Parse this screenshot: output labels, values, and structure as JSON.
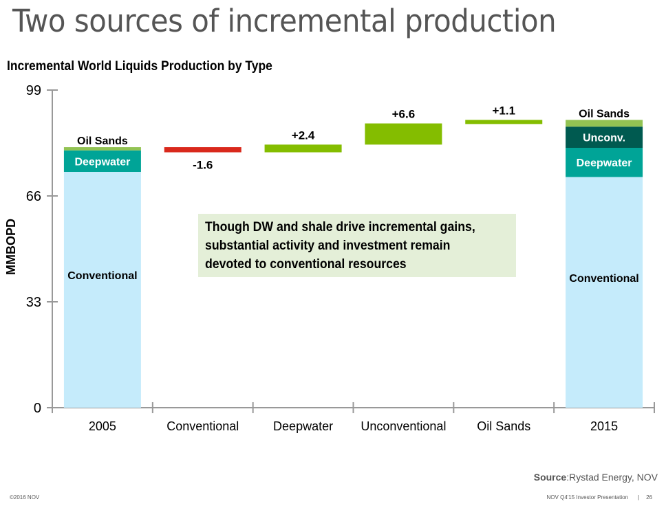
{
  "slide": {
    "title": "Two sources of incremental production",
    "callout_lines": [
      "Though DW and shale drive incremental gains,",
      "substantial activity and investment remain",
      "devoted to conventional resources"
    ],
    "source_label": "Source",
    "source_text": ":Rystad Energy, NOV",
    "footer_left": "©2016 NOV",
    "footer_presentation": "NOV Q4'15 Investor Presentation",
    "footer_separator": "|",
    "page_number": "26"
  },
  "colors": {
    "conventional": "#c5ebfb",
    "deepwater": "#00a497",
    "unconventional": "#005a50",
    "oil_sands": "#92c353",
    "increase": "#84bd00",
    "decrease": "#d9291c",
    "axis": "#999999"
  },
  "chart_data": {
    "type": "bar",
    "subtype": "waterfall",
    "title": "Incremental World Liquids Production by Type",
    "xlabel": "",
    "ylabel": "MMBOPD",
    "ylim": [
      0,
      99
    ],
    "yticks": [
      0,
      33,
      66,
      99
    ],
    "grid": false,
    "categories": [
      "2005",
      "Conventional",
      "Deepwater",
      "Unconventional",
      "Oil Sands",
      "2015"
    ],
    "stacked_totals": [
      {
        "category": "2005",
        "segments": [
          {
            "name": "Conventional",
            "value": 73.5,
            "color_key": "conventional",
            "label_color": "#000000"
          },
          {
            "name": "Deepwater",
            "value": 6.7,
            "color_key": "deepwater",
            "label_color": "#ffffff"
          },
          {
            "name": "Oil Sands",
            "value": 1.0,
            "color_key": "oil_sands",
            "label_color": "#000000",
            "label_above": true
          }
        ]
      },
      {
        "category": "2015",
        "segments": [
          {
            "name": "Conventional",
            "value": 71.9,
            "color_key": "conventional",
            "label_color": "#000000"
          },
          {
            "name": "Deepwater",
            "value": 9.1,
            "color_key": "deepwater",
            "label_color": "#ffffff"
          },
          {
            "name": "Unconv.",
            "value": 6.6,
            "color_key": "unconventional",
            "label_color": "#ffffff"
          },
          {
            "name": "Oil Sands",
            "value": 2.1,
            "color_key": "oil_sands",
            "label_color": "#000000",
            "label_above": true
          }
        ]
      }
    ],
    "changes": [
      {
        "category": "Conventional",
        "value": -1.6,
        "label": "-1.6"
      },
      {
        "category": "Deepwater",
        "value": 2.4,
        "label": "+2.4"
      },
      {
        "category": "Unconventional",
        "value": 6.6,
        "label": "+6.6"
      },
      {
        "category": "Oil Sands",
        "value": 1.1,
        "label": "+1.1"
      }
    ],
    "start_total": 81.2
  }
}
